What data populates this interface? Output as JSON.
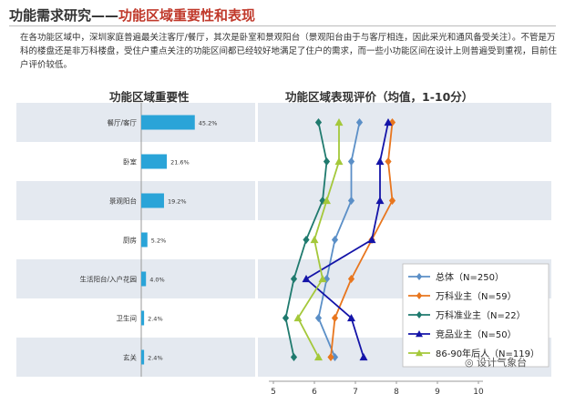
{
  "header": {
    "title_prefix": "功能需求研究——",
    "title_highlight": "功能区域重要性和表现"
  },
  "intro_text": "在各功能区域中，深圳家庭普遍最关注客厅/餐厅，其次是卧室和景观阳台（景观阳台由于与客厅相连，因此采光和通风备受关注）。不管是万科的楼盘还是非万科楼盘，受住户重点关注的功能区间都已经较好地满足了住户的需求，而一些小功能区间在设计上则普遍受到重视，目前住户评价较低。",
  "watermark": "设计气象台",
  "colors": {
    "bar": "#2aa4d8",
    "band": "#e4e9f0",
    "overall": "#5b8fc7",
    "vanke": "#e8761e",
    "quasi": "#1f7a6e",
    "competitor": "#1414a8",
    "age": "#a4c83a"
  },
  "chart_data": [
    {
      "type": "bar",
      "title": "功能区域重要性",
      "categories": [
        "餐厅/客厅",
        "卧室",
        "景观阳台",
        "厨房",
        "生活阳台/入户花园",
        "卫生间",
        "玄关"
      ],
      "values": [
        45.2,
        21.6,
        19.2,
        5.2,
        4.0,
        2.4,
        2.4
      ],
      "value_labels": [
        "45.2%",
        "21.6%",
        "19.2%",
        "5.2%",
        "4.0%",
        "2.4%",
        "2.4%"
      ],
      "xlim": [
        0,
        50
      ]
    },
    {
      "type": "line",
      "title": "功能区域表现评价（均值，1-10分）",
      "orientation": "vertical-profile",
      "categories": [
        "餐厅/客厅",
        "卧室",
        "景观阳台",
        "厨房",
        "生活阳台/入户花园",
        "卫生间",
        "玄关"
      ],
      "xlim": [
        5,
        10
      ],
      "x_ticks": [
        "5",
        "6",
        "7",
        "8",
        "9",
        "10"
      ],
      "series": [
        {
          "name": "总体（N=250）",
          "marker": "diamond",
          "values": [
            7.1,
            6.9,
            6.9,
            6.5,
            6.3,
            6.1,
            6.5
          ]
        },
        {
          "name": "万科业主（N=59）",
          "marker": "diamond",
          "values": [
            7.9,
            7.8,
            7.9,
            7.4,
            6.9,
            6.5,
            6.4
          ]
        },
        {
          "name": "万科准业主（N=22）",
          "marker": "diamond",
          "values": [
            6.1,
            6.3,
            6.2,
            5.8,
            5.5,
            5.3,
            5.5
          ]
        },
        {
          "name": "竞品业主（N=50）",
          "marker": "triangle",
          "values": [
            7.8,
            7.6,
            7.6,
            7.4,
            5.8,
            6.9,
            7.2
          ]
        },
        {
          "name": "86-90年后人（N=119）",
          "marker": "triangle",
          "values": [
            6.6,
            6.6,
            6.3,
            6.0,
            6.2,
            5.6,
            6.1
          ]
        }
      ],
      "legend_position": "bottom-right"
    }
  ]
}
